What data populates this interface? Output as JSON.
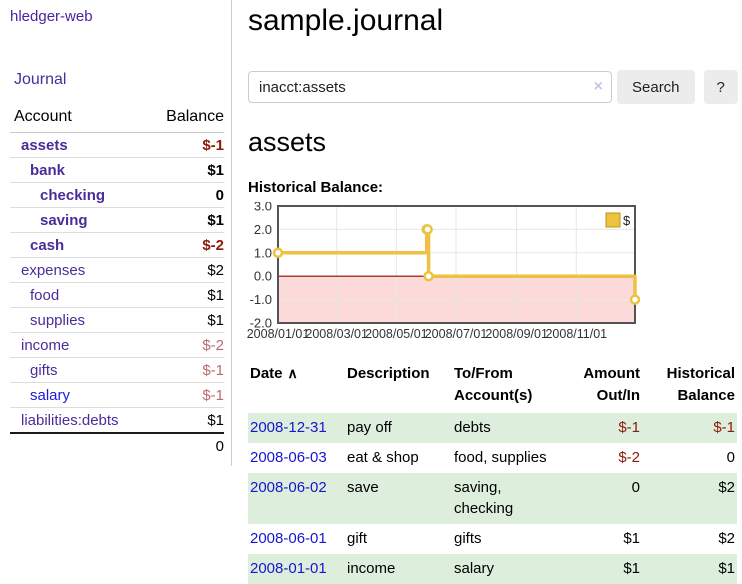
{
  "app": {
    "title": "hledger-web"
  },
  "colors": {
    "accent_purple": "#4a2d99",
    "link_blue": "#1616cf",
    "negative_strong": "#8c1a0a",
    "negative_soft": "#b86d6d",
    "row_stripe_green": "#ddeedd",
    "chart_line": "#edc240",
    "chart_negative_bg": "#fcdada",
    "chart_zero_line": "#990000"
  },
  "sidebar": {
    "nav": {
      "journal_label": "Journal"
    },
    "accounts_table": {
      "headers": {
        "account": "Account",
        "balance": "Balance"
      },
      "rows": [
        {
          "account": "assets",
          "balance": "$-1"
        },
        {
          "account": "bank",
          "balance": "$1"
        },
        {
          "account": "checking",
          "balance": "0"
        },
        {
          "account": "saving",
          "balance": "$1"
        },
        {
          "account": "cash",
          "balance": "$-2"
        },
        {
          "account": "expenses",
          "balance": "$2"
        },
        {
          "account": "food",
          "balance": "$1"
        },
        {
          "account": "supplies",
          "balance": "$1"
        },
        {
          "account": "income",
          "balance": "$-2"
        },
        {
          "account": "gifts",
          "balance": "$-1"
        },
        {
          "account": "salary",
          "balance": "$-1"
        },
        {
          "account": "liabilities:debts",
          "balance": "$1"
        }
      ],
      "total": "0"
    }
  },
  "main": {
    "title": "sample.journal",
    "search": {
      "value": "inacct:assets",
      "clear_icon": "×",
      "button_label": "Search",
      "help_label": "?"
    },
    "account_heading": "assets",
    "chart_heading": "Historical Balance:",
    "register_table": {
      "sort_icon": "∧",
      "headers": {
        "date": "Date",
        "description": "Description",
        "accounts": "To/From Account(s)",
        "amount": "Amount Out/In",
        "balance": "Historical Balance"
      },
      "rows": [
        {
          "date": "2008-12-31",
          "description": "pay off",
          "accounts": "debts",
          "amount": "$-1",
          "balance": "$-1"
        },
        {
          "date": "2008-06-03",
          "description": "eat & shop",
          "accounts": "food, supplies",
          "amount": "$-2",
          "balance": "0"
        },
        {
          "date": "2008-06-02",
          "description": "save",
          "accounts": "saving, checking",
          "amount": "0",
          "balance": "$2"
        },
        {
          "date": "2008-06-01",
          "description": "gift",
          "accounts": "gifts",
          "amount": "$1",
          "balance": "$2"
        },
        {
          "date": "2008-01-01",
          "description": "income",
          "accounts": "salary",
          "amount": "$1",
          "balance": "$1"
        }
      ]
    }
  },
  "chart_data": {
    "type": "line",
    "subtype": "step",
    "title": "Historical Balance",
    "legend": [
      {
        "label": "$",
        "color": "#edc240"
      }
    ],
    "legend_position": "top-right",
    "series": [
      {
        "name": "$",
        "points": [
          [
            "2008-01-01",
            1
          ],
          [
            "2008-06-01",
            2
          ],
          [
            "2008-06-02",
            2
          ],
          [
            "2008-06-03",
            0
          ],
          [
            "2008-12-31",
            -1
          ]
        ]
      }
    ],
    "ylim": [
      -2,
      3
    ],
    "yticks": [
      "3.0",
      "2.0",
      "1.0",
      "0.0",
      "-1.0",
      "-2.0"
    ],
    "xlim": [
      "2008-01-01",
      "2008-12-31"
    ],
    "xticks": [
      {
        "date": "2008-01-01",
        "label": "2008/01/01"
      },
      {
        "date": "2008-03-01",
        "label": "2008/03/01"
      },
      {
        "date": "2008-05-01",
        "label": "2008/05/01"
      },
      {
        "date": "2008-07-01",
        "label": "2008/07/01"
      },
      {
        "date": "2008-09-01",
        "label": "2008/09/01"
      },
      {
        "date": "2008-11-01",
        "label": "2008/11/01"
      }
    ],
    "grid": true,
    "negative_region_color": "#fcdada",
    "zero_line_color": "#990000",
    "line_color": "#edc240"
  }
}
